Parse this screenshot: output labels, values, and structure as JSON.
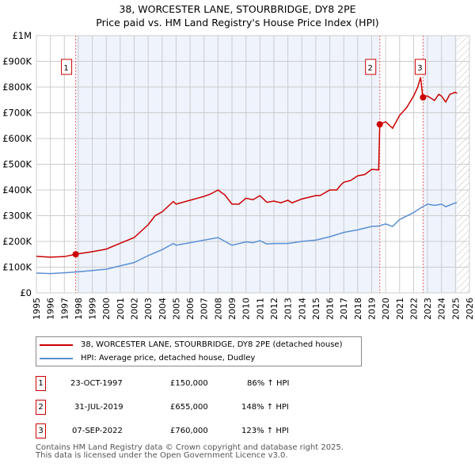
{
  "chart_data": {
    "type": "line",
    "title": "38, WORCESTER LANE, STOURBRIDGE, DY8 2PE",
    "subtitle": "Price paid vs. HM Land Registry's House Price Index (HPI)",
    "xlim": [
      1995,
      2026
    ],
    "ylim": [
      0,
      1000000
    ],
    "x_ticks": [
      "1995",
      "1996",
      "1997",
      "1998",
      "1999",
      "2000",
      "2001",
      "2002",
      "2003",
      "2004",
      "2005",
      "2006",
      "2007",
      "2008",
      "2009",
      "2010",
      "2011",
      "2012",
      "2013",
      "2014",
      "2015",
      "2016",
      "2017",
      "2018",
      "2019",
      "2020",
      "2021",
      "2022",
      "2023",
      "2024",
      "2025",
      "2026"
    ],
    "y_ticks": [
      {
        "v": 0,
        "label": "£0"
      },
      {
        "v": 100000,
        "label": "£100K"
      },
      {
        "v": 200000,
        "label": "£200K"
      },
      {
        "v": 300000,
        "label": "£300K"
      },
      {
        "v": 400000,
        "label": "£400K"
      },
      {
        "v": 500000,
        "label": "£500K"
      },
      {
        "v": 600000,
        "label": "£600K"
      },
      {
        "v": 700000,
        "label": "£700K"
      },
      {
        "v": 800000,
        "label": "£800K"
      },
      {
        "v": 900000,
        "label": "£900K"
      },
      {
        "v": 1000000,
        "label": "£1M"
      }
    ],
    "grid": true,
    "data_end": 2025.1,
    "series": [
      {
        "name": "38, WORCESTER LANE, STOURBRIDGE, DY8 2PE (detached house)",
        "color": "#cc0000",
        "x": [
          1995,
          1996,
          1997,
          1997.8,
          1998,
          1999,
          2000,
          2001,
          2002,
          2003,
          2003.5,
          2004,
          2004.8,
          2005,
          2006,
          2007,
          2007.5,
          2008,
          2008.5,
          2009,
          2009.5,
          2010,
          2010.5,
          2011,
          2011.5,
          2012,
          2012.5,
          2013,
          2013.3,
          2014,
          2015,
          2015.3,
          2016,
          2016.5,
          2016.8,
          2017,
          2017.5,
          2018,
          2018.5,
          2019,
          2019.5,
          2019.58,
          2020,
          2020.5,
          2021,
          2021.5,
          2022,
          2022.3,
          2022.5,
          2022.65,
          2023,
          2023.5,
          2023.8,
          2024,
          2024.3,
          2024.6,
          2025,
          2025.1
        ],
        "values": [
          142000,
          139000,
          141000,
          150000,
          152000,
          160000,
          170000,
          193000,
          215000,
          265000,
          300000,
          315000,
          355000,
          345000,
          360000,
          375000,
          385000,
          400000,
          380000,
          345000,
          345000,
          368000,
          362000,
          378000,
          352000,
          357000,
          350000,
          360000,
          350000,
          365000,
          378000,
          378000,
          400000,
          400000,
          420000,
          430000,
          437000,
          455000,
          460000,
          480000,
          478000,
          655000,
          665000,
          640000,
          690000,
          720000,
          765000,
          800000,
          838000,
          765000,
          765000,
          748000,
          772000,
          765000,
          742000,
          772000,
          780000,
          775000
        ]
      },
      {
        "name": "HPI: Average price, detached house, Dudley",
        "color": "#5b8fd4",
        "x": [
          1995,
          1996,
          1997,
          1998,
          1999,
          2000,
          2001,
          2002,
          2003,
          2004,
          2004.8,
          2005,
          2006,
          2007,
          2008,
          2009,
          2010,
          2010.5,
          2011,
          2011.5,
          2012,
          2013,
          2014,
          2015,
          2016,
          2017,
          2018,
          2019,
          2019.5,
          2020,
          2020.5,
          2021,
          2022,
          2022.5,
          2023,
          2023.5,
          2024,
          2024.3,
          2025,
          2025.1
        ],
        "values": [
          77000,
          75000,
          78000,
          82000,
          87000,
          92000,
          105000,
          118000,
          145000,
          168000,
          192000,
          185000,
          195000,
          205000,
          215000,
          185000,
          198000,
          195000,
          203000,
          190000,
          192000,
          192000,
          200000,
          205000,
          218000,
          235000,
          245000,
          258000,
          260000,
          268000,
          258000,
          285000,
          312000,
          330000,
          345000,
          340000,
          345000,
          335000,
          350000,
          350000
        ]
      }
    ],
    "sales": [
      {
        "n": "1",
        "x": 1997.81,
        "price": 150000,
        "date": "23-OCT-1997",
        "price_label": "£150,000",
        "hpi": "86% ↑ HPI"
      },
      {
        "n": "2",
        "x": 2019.58,
        "price": 655000,
        "date": "31-JUL-2019",
        "price_label": "£655,000",
        "hpi": "148% ↑ HPI"
      },
      {
        "n": "3",
        "x": 2022.68,
        "price": 760000,
        "date": "07-SEP-2022",
        "price_label": "£760,000",
        "hpi": "123% ↑ HPI"
      }
    ]
  },
  "footer": [
    "Contains HM Land Registry data © Crown copyright and database right 2025.",
    "This data is licensed under the Open Government Licence v3.0."
  ]
}
